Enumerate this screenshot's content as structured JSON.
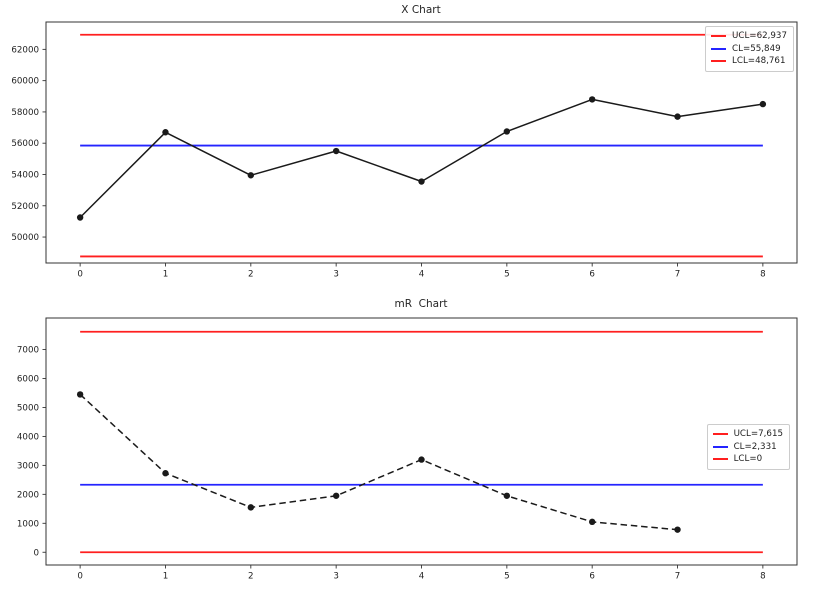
{
  "colors": {
    "control_limit_red": "#ff1f1f",
    "center_line_blue": "#2424ff",
    "series_black": "#1a1a1a",
    "spine": "#333333",
    "tick_label": "#1f1f1f",
    "legend_border": "#cccccc",
    "background": "#ffffff"
  },
  "chart_data": [
    {
      "type": "line",
      "title": "X Chart",
      "x": [
        0,
        1,
        2,
        3,
        4,
        5,
        6,
        7,
        8
      ],
      "values": [
        51250,
        56700,
        53950,
        55500,
        53550,
        56750,
        58800,
        57700,
        58500
      ],
      "line_style": "solid",
      "marker": "circle",
      "series_color": "#1a1a1a",
      "control_lines": [
        {
          "name": "UCL",
          "label": "UCL=62,937",
          "value": 62937,
          "color": "#ff1f1f"
        },
        {
          "name": "CL",
          "label": "CL=55,849",
          "value": 55849,
          "color": "#2424ff"
        },
        {
          "name": "LCL",
          "label": "LCL=48,761",
          "value": 48761,
          "color": "#ff1f1f"
        }
      ],
      "control_line_span_x": [
        0,
        8
      ],
      "xticks": [
        0,
        1,
        2,
        3,
        4,
        5,
        6,
        7,
        8
      ],
      "yticks": [
        50000,
        52000,
        54000,
        56000,
        58000,
        60000,
        62000
      ],
      "xlim": [
        -0.4,
        8.4
      ],
      "ylim": [
        48340,
        63750
      ],
      "grid": false,
      "legend_position": "upper right"
    },
    {
      "type": "line",
      "title": "mR  Chart",
      "x": [
        0,
        1,
        2,
        3,
        4,
        5,
        6,
        7
      ],
      "values": [
        5450,
        2730,
        1550,
        1950,
        3200,
        1950,
        1050,
        780
      ],
      "line_style": "dashed",
      "marker": "circle",
      "series_color": "#1a1a1a",
      "control_lines": [
        {
          "name": "UCL",
          "label": "UCL=7,615",
          "value": 7615,
          "color": "#ff1f1f"
        },
        {
          "name": "CL",
          "label": "CL=2,331",
          "value": 2331,
          "color": "#2424ff"
        },
        {
          "name": "LCL",
          "label": "LCL=0",
          "value": 0,
          "color": "#ff1f1f"
        }
      ],
      "control_line_span_x": [
        0,
        8
      ],
      "xticks": [
        0,
        1,
        2,
        3,
        4,
        5,
        6,
        7,
        8
      ],
      "yticks": [
        0,
        1000,
        2000,
        3000,
        4000,
        5000,
        6000,
        7000
      ],
      "xlim": [
        -0.4,
        8.4
      ],
      "ylim": [
        -440,
        8090
      ],
      "grid": false,
      "legend_position": "center right"
    }
  ]
}
